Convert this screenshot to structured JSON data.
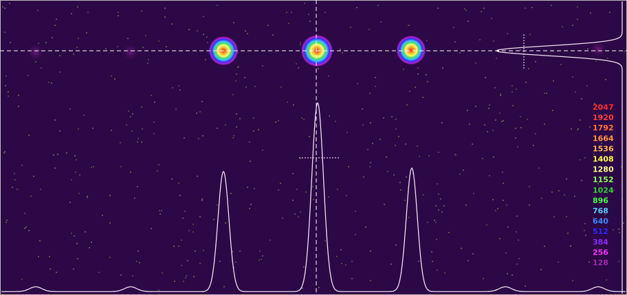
{
  "color_scale": {
    "labels": [
      {
        "text": "2047",
        "color": "#ff2a2a"
      },
      {
        "text": "1920",
        "color": "#ff3c3c"
      },
      {
        "text": "1792",
        "color": "#ff7a3a"
      },
      {
        "text": "1664",
        "color": "#ff9a3a"
      },
      {
        "text": "1536",
        "color": "#ffb84a"
      },
      {
        "text": "1408",
        "color": "#ffff40"
      },
      {
        "text": "1280",
        "color": "#ffff90"
      },
      {
        "text": "1152",
        "color": "#90ff50"
      },
      {
        "text": "1024",
        "color": "#30d030"
      },
      {
        "text": "896",
        "color": "#40ff40"
      },
      {
        "text": "768",
        "color": "#50d0ff"
      },
      {
        "text": "640",
        "color": "#3a8cff"
      },
      {
        "text": "512",
        "color": "#2a2aff"
      },
      {
        "text": "384",
        "color": "#8a2aff"
      },
      {
        "text": "256",
        "color": "#ff30ff"
      },
      {
        "text": "128",
        "color": "#a02ab0"
      }
    ]
  }
}
